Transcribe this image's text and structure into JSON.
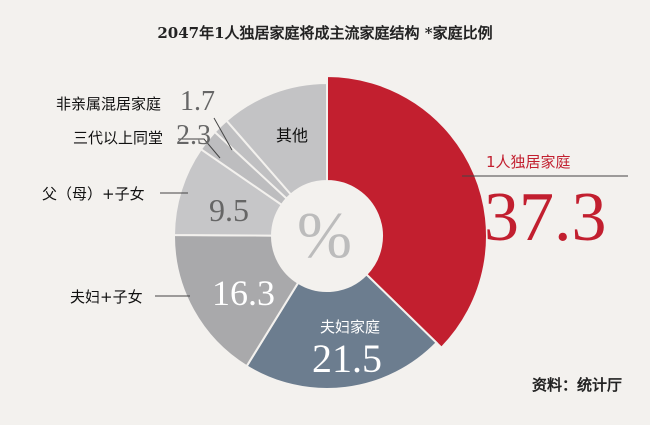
{
  "chart_data": {
    "type": "pie",
    "title": "2047年1人独居家庭将成主流家庭结构 *家庭比例",
    "center_label": "%",
    "source": "资料：统计厅",
    "slices": [
      {
        "label": "1人独居家庭",
        "value": 37.3,
        "value_text": "37.3",
        "color": "#c21f2f"
      },
      {
        "label": "夫妇家庭",
        "value": 21.5,
        "value_text": "21.5",
        "color": "#6c7d8f"
      },
      {
        "label": "夫妇+子女",
        "value": 16.3,
        "value_text": "16.3",
        "color": "#a9a9ab"
      },
      {
        "label": "父（母）+子女",
        "value": 9.5,
        "value_text": "9.5",
        "color": "#c6c6c8"
      },
      {
        "label": "三代以上同堂",
        "value": 2.3,
        "value_text": "2.3",
        "color": "#bdbdbf"
      },
      {
        "label": "非亲属混居家庭",
        "value": 1.7,
        "value_text": "1.7",
        "color": "#c0c0c2"
      },
      {
        "label": "其他",
        "value": 11.4,
        "value_text": "",
        "color": "#c3c3c5"
      }
    ]
  }
}
